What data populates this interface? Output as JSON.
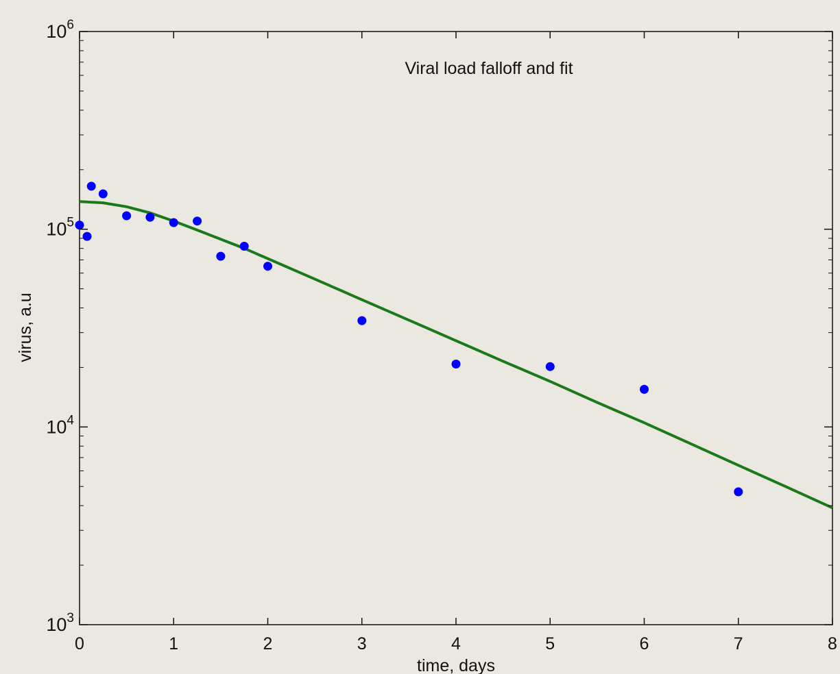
{
  "chart_data": {
    "type": "scatter",
    "title": "",
    "annotation": "Viral load falloff and fit",
    "xlabel": "time, days",
    "ylabel": "virus, a.u",
    "xlim": [
      0,
      8
    ],
    "ylim": [
      1000,
      1000000
    ],
    "yscale": "log",
    "grid": false,
    "x_ticks": [
      0,
      1,
      2,
      3,
      4,
      5,
      6,
      7,
      8
    ],
    "x_tick_labels": [
      "0",
      "1",
      "2",
      "3",
      "4",
      "5",
      "6",
      "7",
      "8"
    ],
    "y_ticks": [
      {
        "value": 1000,
        "base": "10",
        "exp": "3"
      },
      {
        "value": 10000,
        "base": "10",
        "exp": "4"
      },
      {
        "value": 100000,
        "base": "10",
        "exp": "5"
      },
      {
        "value": 1000000,
        "base": "10",
        "exp": "6"
      }
    ],
    "series": [
      {
        "kind": "scatter",
        "color": "#0000ff",
        "points": [
          [
            0.0,
            105000
          ],
          [
            0.08,
            92000
          ],
          [
            0.125,
            165000
          ],
          [
            0.25,
            151000
          ],
          [
            0.5,
            117000
          ],
          [
            0.75,
            115000
          ],
          [
            1.0,
            108000
          ],
          [
            1.25,
            110000
          ],
          [
            1.5,
            73000
          ],
          [
            1.75,
            82000
          ],
          [
            2.0,
            65000
          ],
          [
            3.0,
            34500
          ],
          [
            4.0,
            20800
          ],
          [
            5.0,
            20200
          ],
          [
            6.0,
            15500
          ],
          [
            7.0,
            4700
          ]
        ]
      },
      {
        "kind": "line",
        "color": "#1a7a1a",
        "points": [
          [
            0.0,
            138000
          ],
          [
            0.25,
            136000
          ],
          [
            0.5,
            130000
          ],
          [
            0.75,
            121000
          ],
          [
            1.0,
            110000
          ],
          [
            1.25,
            99000
          ],
          [
            1.5,
            89000
          ],
          [
            1.75,
            80000
          ],
          [
            2.0,
            71000
          ],
          [
            2.5,
            56000
          ],
          [
            3.0,
            44000
          ],
          [
            3.5,
            34700
          ],
          [
            4.0,
            27300
          ],
          [
            4.5,
            21500
          ],
          [
            5.0,
            17000
          ],
          [
            5.5,
            13300
          ],
          [
            6.0,
            10500
          ],
          [
            6.5,
            8200
          ],
          [
            7.0,
            6400
          ],
          [
            7.5,
            5000
          ],
          [
            8.0,
            3900
          ]
        ]
      }
    ]
  }
}
